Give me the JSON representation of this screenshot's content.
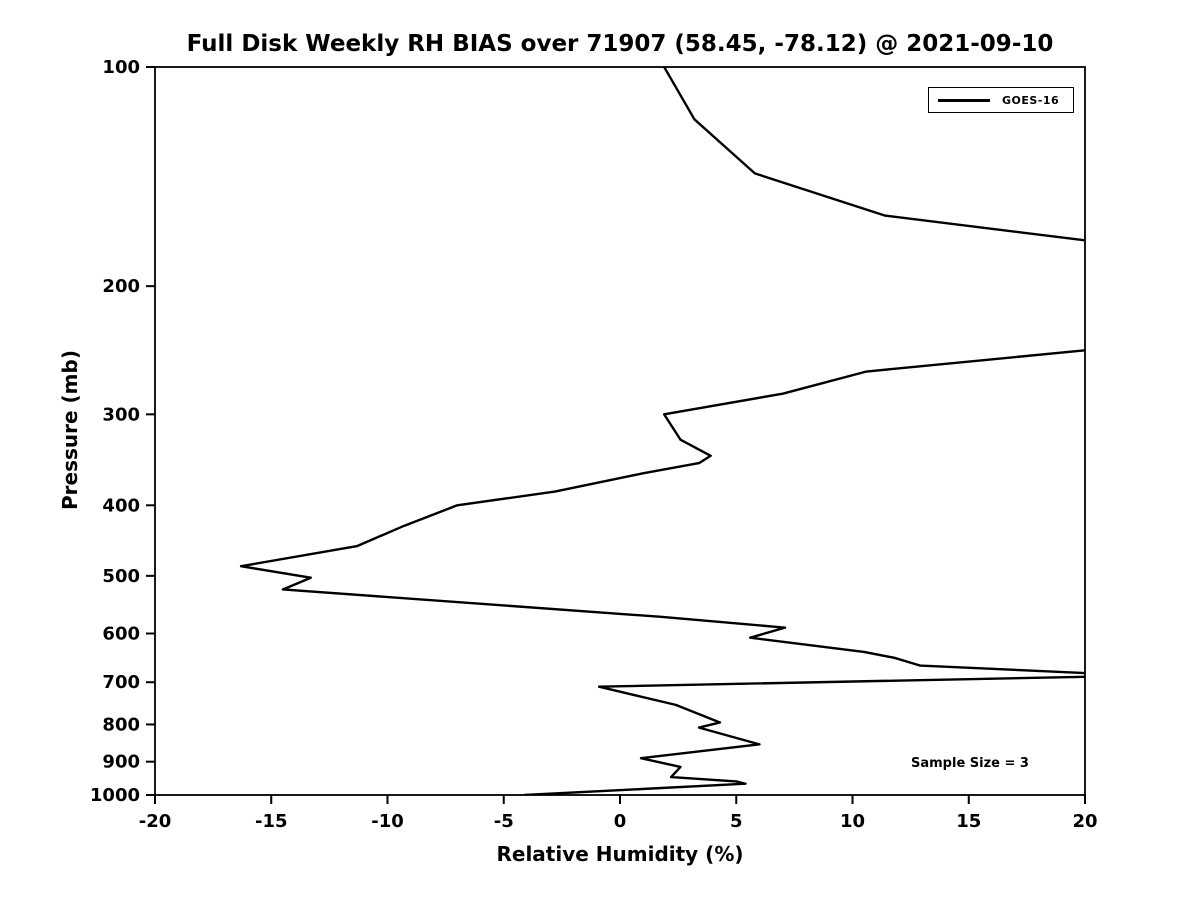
{
  "chart_data": {
    "type": "line",
    "title": "Full Disk Weekly RH BIAS over 71907 (58.45, -78.12) @ 2021-09-10",
    "xlabel": "Relative Humidity (%)",
    "ylabel": "Pressure (mb)",
    "xlim": [
      -20,
      20
    ],
    "ylim": [
      100,
      1000
    ],
    "yscale": "log",
    "y_axis_inverted": true,
    "grid": false,
    "clip_to_xlim": true,
    "xticks": [
      "-20",
      "-15",
      "-10",
      "-5",
      "0",
      "5",
      "10",
      "15",
      "20"
    ],
    "yticks": [
      "100",
      "200",
      "300",
      "400",
      "500",
      "600",
      "700",
      "800",
      "900",
      "1000"
    ],
    "legend_position": "upper right",
    "annotation": "Sample Size = 3",
    "line_color": "#000000",
    "series": [
      {
        "name": "GOES-16",
        "points_pressure_rh": [
          [
            100,
            1.9
          ],
          [
            118,
            3.2
          ],
          [
            140,
            5.8
          ],
          [
            160,
            11.4
          ],
          [
            173,
            20
          ],
          [
            205,
            25
          ],
          [
            245,
            20
          ],
          [
            262,
            10.6
          ],
          [
            281,
            7.0
          ],
          [
            300,
            1.9
          ],
          [
            325,
            2.6
          ],
          [
            342,
            3.9
          ],
          [
            350,
            3.4
          ],
          [
            362,
            0.9
          ],
          [
            383,
            -2.8
          ],
          [
            400,
            -7.0
          ],
          [
            427,
            -9.3
          ],
          [
            455,
            -11.3
          ],
          [
            485,
            -16.3
          ],
          [
            503,
            -13.3
          ],
          [
            522,
            -14.5
          ],
          [
            569,
            1.7
          ],
          [
            589,
            7.1
          ],
          [
            608,
            5.6
          ],
          [
            636,
            10.5
          ],
          [
            648,
            11.8
          ],
          [
            664,
            12.9
          ],
          [
            680,
            20
          ],
          [
            685,
            22
          ],
          [
            688,
            20
          ],
          [
            710,
            -0.9
          ],
          [
            752,
            2.4
          ],
          [
            795,
            4.3
          ],
          [
            808,
            3.4
          ],
          [
            852,
            6.0
          ],
          [
            890,
            0.9
          ],
          [
            915,
            2.6
          ],
          [
            945,
            2.2
          ],
          [
            958,
            5.0
          ],
          [
            965,
            5.4
          ],
          [
            1000,
            -4.1
          ]
        ]
      }
    ]
  }
}
